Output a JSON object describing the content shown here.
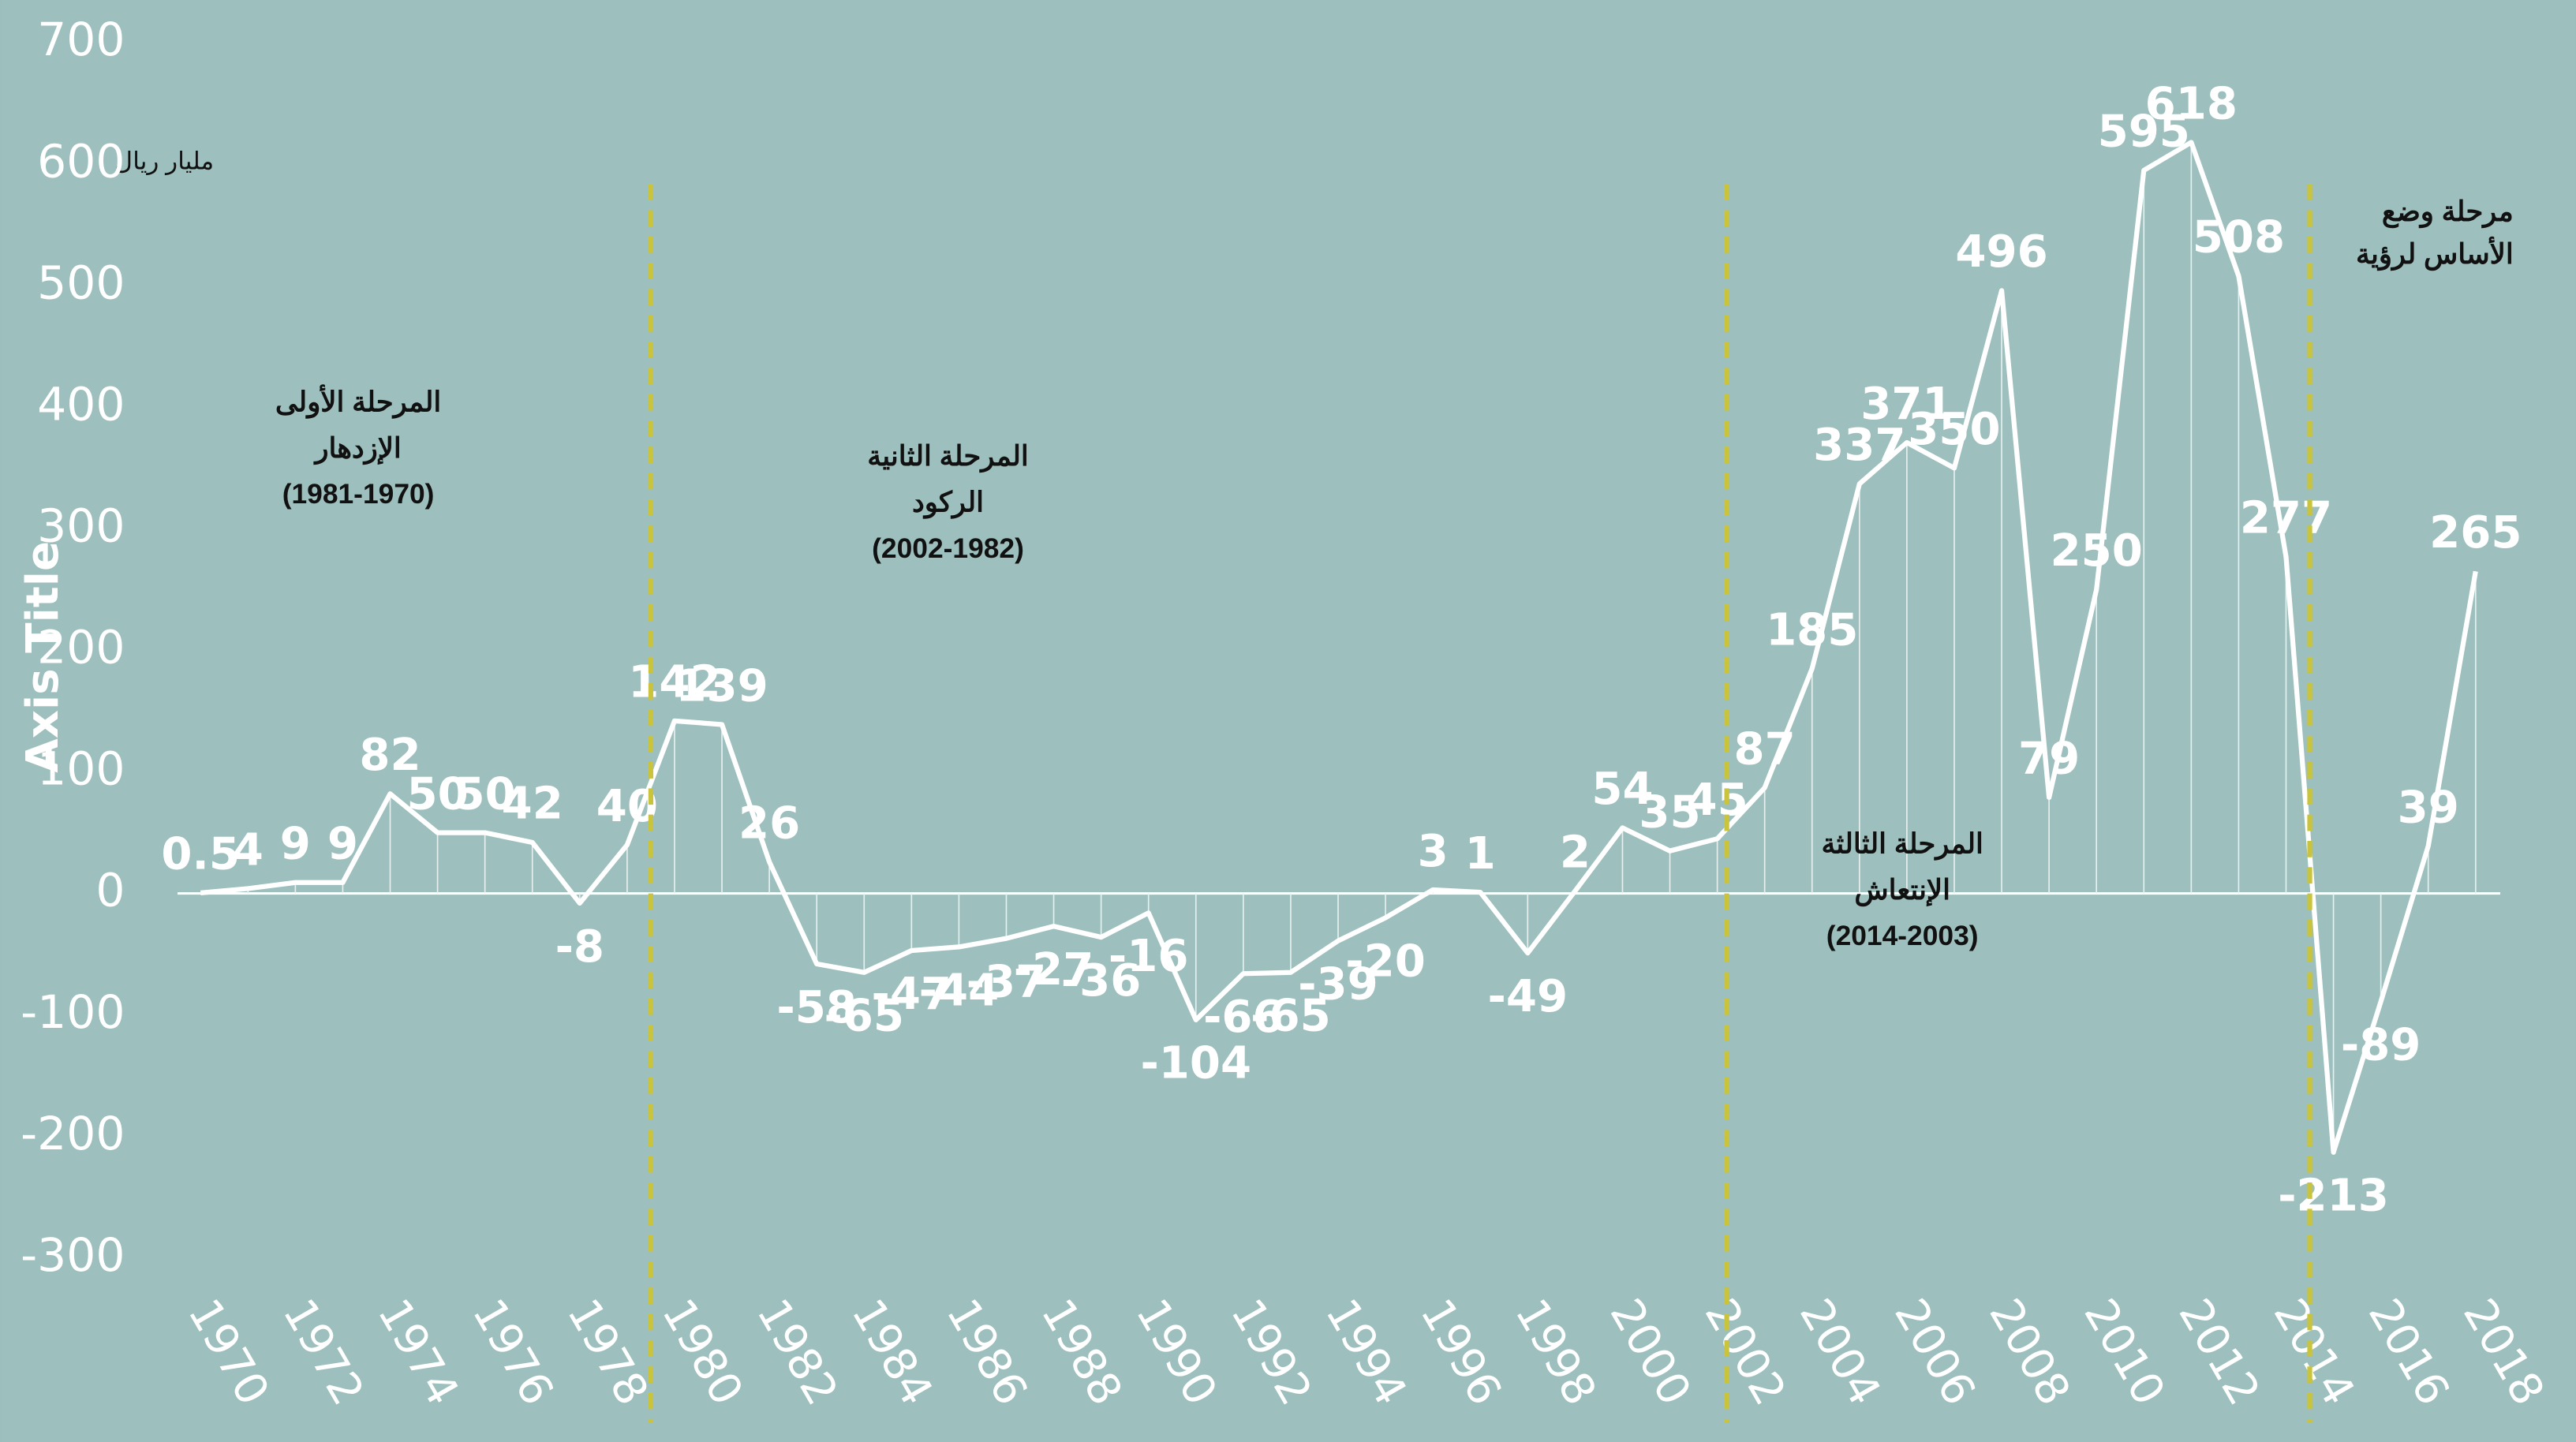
{
  "chart_data": {
    "type": "line",
    "y_axis_title": "Axis Title",
    "unit_label": "مليار ريال",
    "x": [
      1970,
      1971,
      1972,
      1973,
      1974,
      1975,
      1976,
      1977,
      1978,
      1979,
      1980,
      1981,
      1982,
      1983,
      1984,
      1985,
      1986,
      1987,
      1988,
      1989,
      1990,
      1991,
      1992,
      1993,
      1994,
      1995,
      1996,
      1997,
      1998,
      1999,
      2000,
      2001,
      2002,
      2003,
      2004,
      2005,
      2006,
      2007,
      2008,
      2009,
      2010,
      2011,
      2012,
      2013,
      2014,
      2015,
      2016,
      2017,
      2018
    ],
    "values": [
      0.5,
      4,
      9,
      9,
      82,
      50,
      50,
      42,
      -8,
      40,
      142,
      139,
      26,
      -58,
      -65,
      -47,
      -44,
      -37,
      -27,
      -36,
      -16,
      -104,
      -66,
      -65,
      -39,
      -20,
      3,
      1,
      -49,
      2,
      54,
      35,
      45,
      87,
      185,
      337,
      371,
      350,
      496,
      79,
      250,
      595,
      618,
      508,
      277,
      -213,
      -89,
      39,
      265
    ],
    "color": "#ffffff",
    "xlim": [
      1970,
      2018
    ],
    "xticks": [
      1970,
      1972,
      1974,
      1976,
      1978,
      1980,
      1982,
      1984,
      1986,
      1988,
      1990,
      1992,
      1994,
      1996,
      1998,
      2000,
      2002,
      2004,
      2006,
      2008,
      2010,
      2012,
      2014,
      2016,
      2018
    ],
    "ylim": [
      -300,
      700
    ],
    "yticks": [
      -300,
      -200,
      -100,
      0,
      100,
      200,
      300,
      400,
      500,
      600,
      700
    ],
    "phase_dividers": [
      1979.5,
      2002.2,
      2014.5
    ],
    "annotations": [
      [
        "المرحلة الأولى",
        "الإزدهار",
        "(1981-1970)"
      ],
      [
        "المرحلة الثانية",
        "الركود",
        "(2002-1982)"
      ],
      [
        "المرحلة الثالثة",
        "الإنتعاش",
        "(2014-2003)"
      ],
      [
        "مرحلة وضع",
        "الأساس لرؤية"
      ]
    ]
  }
}
